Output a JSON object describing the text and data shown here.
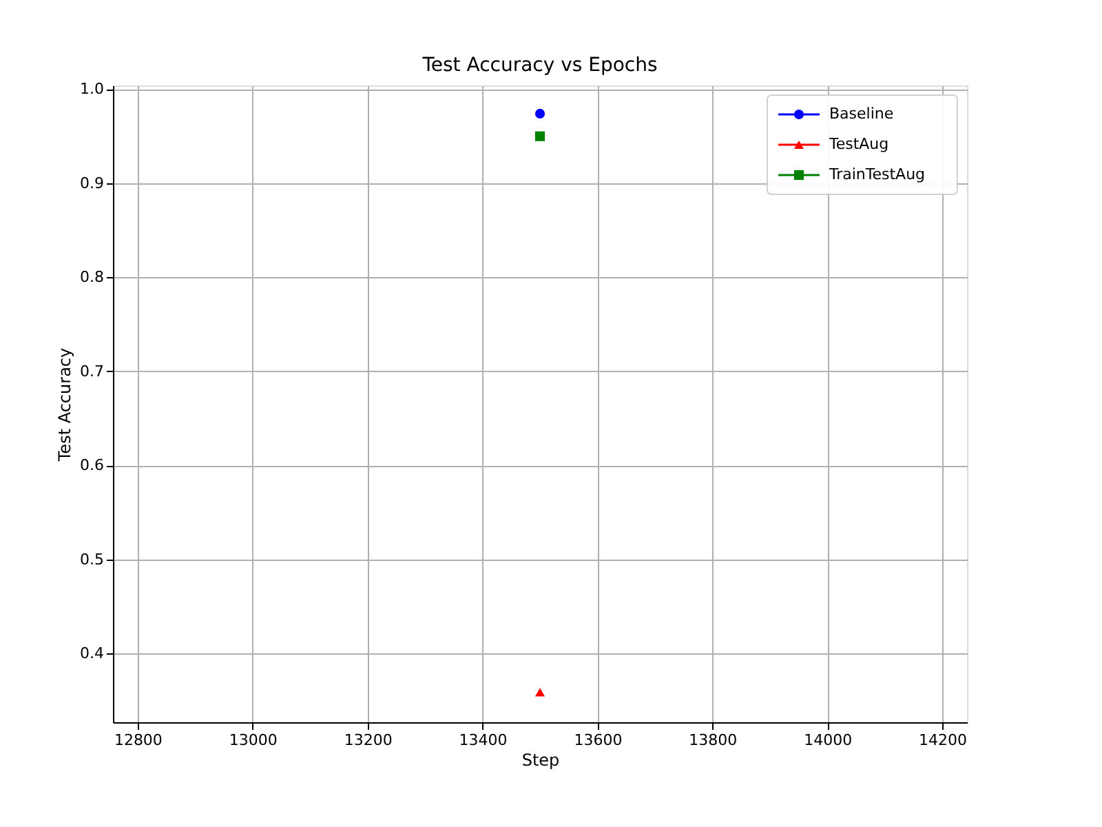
{
  "chart_data": {
    "type": "line",
    "title": "Test Accuracy vs Epochs",
    "xlabel": "Step",
    "ylabel": "Test Accuracy",
    "x": [
      13500
    ],
    "series": [
      {
        "name": "Baseline",
        "color": "#0000ff",
        "marker": "circle",
        "values": [
          0.974
        ]
      },
      {
        "name": "TestAug",
        "color": "#ff0000",
        "marker": "triangle",
        "values": [
          0.359
        ]
      },
      {
        "name": "TrainTestAug",
        "color": "#008000",
        "marker": "square",
        "values": [
          0.95
        ]
      }
    ],
    "xlim": [
      12757,
      14243
    ],
    "xticks": [
      12800,
      13000,
      13200,
      13400,
      13600,
      13800,
      14000,
      14200
    ],
    "ylim": [
      0.327,
      1.004
    ],
    "yticks": [
      0.4,
      0.5,
      0.6,
      0.7,
      0.8,
      0.9,
      {
        "value": 1.0,
        "label": "1.0"
      }
    ],
    "grid": true,
    "legend": "top right",
    "line_style": "solid"
  }
}
